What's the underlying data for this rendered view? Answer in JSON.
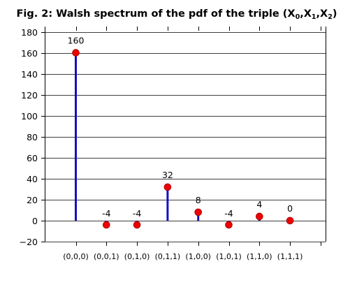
{
  "chart_data": {
    "type": "stem",
    "title_main": "Fig. 2: Walsh spectrum of the pdf of the triple (X",
    "title_vars": [
      {
        "sub": "0",
        "sep": ",X"
      },
      {
        "sub": "1",
        "sep": ",X"
      },
      {
        "sub": "2",
        "sep": ")"
      }
    ],
    "categories": [
      "(0,0,0)",
      "(0,0,1)",
      "(0,1,0)",
      "(0,1,1)",
      "(1,0,0)",
      "(1,0,1)",
      "(1,1,0)",
      "(1,1,1)"
    ],
    "values": [
      160,
      -4,
      -4,
      32,
      8,
      -4,
      4,
      0
    ],
    "data_labels": [
      "160",
      "-4",
      "-4",
      "32",
      "8",
      "-4",
      "4",
      "0"
    ],
    "y_ticks": [
      -20,
      0,
      20,
      40,
      60,
      80,
      100,
      120,
      140,
      160,
      180
    ],
    "y_tick_labels": [
      "−20",
      "0",
      "20",
      "40",
      "60",
      "80",
      "100",
      "120",
      "140",
      "160",
      "180"
    ],
    "ylim": [
      -20,
      185
    ],
    "grid": true,
    "colors": {
      "stem": "#1010c8",
      "marker_fill": "#ee0000",
      "marker_edge": "#aa0000",
      "axis": "#000000"
    }
  }
}
